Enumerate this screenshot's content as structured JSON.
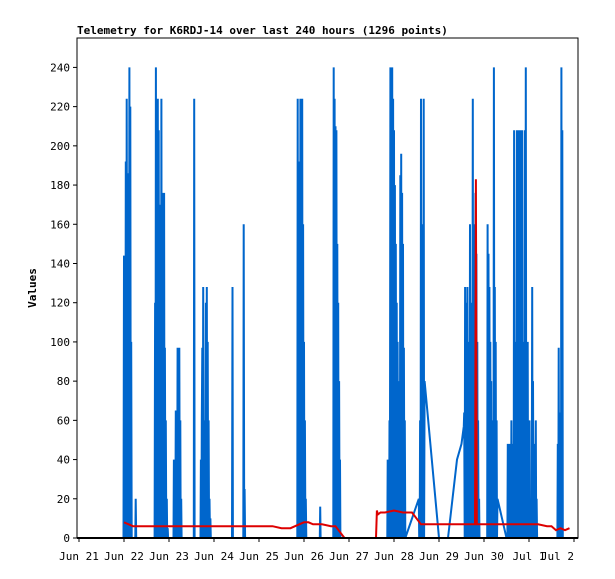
{
  "chart_data": {
    "type": "line",
    "title": "Telemetry for K6RDJ-14 over last 240 hours (1296 points)",
    "xlabel": "",
    "ylabel": "Values",
    "ylim": [
      0,
      255
    ],
    "xlim": [
      0,
      11
    ],
    "y_ticks": [
      0,
      20,
      40,
      60,
      80,
      100,
      120,
      140,
      160,
      180,
      200,
      220,
      240
    ],
    "x_ticks": [
      "Jun 21",
      "Jun 22",
      "Jun 23",
      "Jun 24",
      "Jun 25",
      "Jun 26",
      "Jun 27",
      "Jun 28",
      "Jun 29",
      "Jun 30",
      "Jul 1",
      "Jul 2"
    ],
    "grid": false,
    "legend": "none",
    "series": [
      {
        "color": "#0066cc",
        "x": [
          0.99,
          1.0,
          1.01,
          1.02,
          1.03,
          1.04,
          1.05,
          1.06,
          1.07,
          1.08,
          1.09,
          1.1,
          1.11,
          1.12,
          1.13,
          1.14,
          1.15,
          1.16,
          1.17,
          1.18,
          1.19,
          1.2,
          1.21,
          1.22,
          1.23,
          1.24,
          1.25,
          1.26,
          1.27,
          1.28,
          1.29,
          1.3,
          1.68,
          1.69,
          1.7,
          1.71,
          1.72,
          1.73,
          1.74,
          1.75,
          1.76,
          1.77,
          1.78,
          1.79,
          1.8,
          1.81,
          1.82,
          1.83,
          1.84,
          1.85,
          1.86,
          1.87,
          1.88,
          1.89,
          1.9,
          1.91,
          1.92,
          1.93,
          1.94,
          1.95,
          1.96,
          1.97,
          1.98,
          2.1,
          2.11,
          2.12,
          2.13,
          2.14,
          2.15,
          2.16,
          2.17,
          2.18,
          2.19,
          2.2,
          2.21,
          2.22,
          2.23,
          2.24,
          2.25,
          2.26,
          2.27,
          2.28,
          2.29,
          2.3,
          2.55,
          2.56,
          2.57,
          2.58,
          2.7,
          2.71,
          2.72,
          2.73,
          2.74,
          2.75,
          2.76,
          2.77,
          2.78,
          2.79,
          2.8,
          2.81,
          2.82,
          2.83,
          2.84,
          2.85,
          2.86,
          2.87,
          2.88,
          2.89,
          2.9,
          2.91,
          2.92,
          2.93,
          3.4,
          3.41,
          3.42,
          3.65,
          3.66,
          3.67,
          3.68,
          3.69,
          4.85,
          4.86,
          4.87,
          4.88,
          4.89,
          4.9,
          4.91,
          4.92,
          4.93,
          4.94,
          4.95,
          4.96,
          4.97,
          4.98,
          4.99,
          5.0,
          5.01,
          5.02,
          5.03,
          5.04,
          5.05,
          5.06,
          5.35,
          5.36,
          5.37,
          5.65,
          5.66,
          5.67,
          5.68,
          5.69,
          5.7,
          5.71,
          5.72,
          5.73,
          5.74,
          5.75,
          5.76,
          5.77,
          5.78,
          5.79,
          5.8,
          5.81,
          6.85,
          6.86,
          6.87,
          6.88,
          6.89,
          6.9,
          6.91,
          6.92,
          6.93,
          6.94,
          6.95,
          6.96,
          6.97,
          6.98,
          6.99,
          7.0,
          7.01,
          7.02,
          7.03,
          7.04,
          7.05,
          7.06,
          7.07,
          7.08,
          7.09,
          7.1,
          7.11,
          7.12,
          7.13,
          7.14,
          7.15,
          7.16,
          7.17,
          7.18,
          7.19,
          7.2,
          7.21,
          7.22,
          7.23,
          7.24,
          7.25,
          7.55,
          7.56,
          7.57,
          7.58,
          7.59,
          7.6,
          7.61,
          7.62,
          7.63,
          7.64,
          7.65,
          7.66,
          7.67,
          7.68,
          8.0,
          8.1,
          8.2,
          8.3,
          8.4,
          8.5,
          8.55,
          8.56,
          8.57,
          8.58,
          8.59,
          8.6,
          8.61,
          8.62,
          8.63,
          8.64,
          8.65,
          8.66,
          8.67,
          8.68,
          8.69,
          8.7,
          8.71,
          8.72,
          8.73,
          8.74,
          8.75,
          8.76,
          8.77,
          8.78,
          8.79,
          8.8,
          8.81,
          8.82,
          8.83,
          8.84,
          8.85,
          8.86,
          8.87,
          8.88,
          8.89,
          8.9,
          9.05,
          9.06,
          9.07,
          9.08,
          9.09,
          9.1,
          9.11,
          9.12,
          9.13,
          9.14,
          9.15,
          9.16,
          9.17,
          9.18,
          9.19,
          9.2,
          9.21,
          9.22,
          9.23,
          9.24,
          9.25,
          9.26,
          9.27,
          9.28,
          9.29,
          9.3,
          9.5,
          9.51,
          9.52,
          9.53,
          9.54,
          9.55,
          9.56,
          9.57,
          9.58,
          9.59,
          9.6,
          9.61,
          9.62,
          9.63,
          9.64,
          9.65,
          9.66,
          9.67,
          9.68,
          9.69,
          9.7,
          9.71,
          9.72,
          9.73,
          9.74,
          9.75,
          9.76,
          9.77,
          9.78,
          9.79,
          9.8,
          9.81,
          9.82,
          9.83,
          9.84,
          9.85,
          9.86,
          9.87,
          9.88,
          9.89,
          9.9,
          9.91,
          9.92,
          9.93,
          9.94,
          9.95,
          9.96,
          9.97,
          9.98,
          9.99,
          10.0,
          10.01,
          10.02,
          10.03,
          10.04,
          10.05,
          10.06,
          10.07,
          10.08,
          10.09,
          10.1,
          10.11,
          10.12,
          10.13,
          10.14,
          10.15,
          10.16,
          10.17,
          10.18,
          10.19,
          10.2,
          10.21,
          10.63,
          10.64,
          10.65,
          10.66,
          10.67,
          10.68,
          10.69,
          10.7,
          10.71,
          10.72,
          10.73,
          10.74,
          10.75
        ],
        "y": [
          0,
          144,
          0,
          80,
          0,
          192,
          0,
          224,
          40,
          186,
          0,
          112,
          0,
          240,
          60,
          220,
          0,
          100,
          0,
          0,
          0,
          0,
          0,
          0,
          0,
          0,
          0,
          20,
          0,
          0,
          0,
          0,
          0,
          120,
          0,
          240,
          0,
          200,
          0,
          224,
          60,
          208,
          0,
          170,
          0,
          145,
          0,
          224,
          0,
          176,
          0,
          60,
          0,
          176,
          0,
          97,
          0,
          60,
          0,
          20,
          0,
          5,
          0,
          0,
          40,
          0,
          28,
          0,
          65,
          0,
          30,
          0,
          97,
          0,
          80,
          0,
          97,
          0,
          60,
          0,
          20,
          0,
          0,
          0,
          0,
          224,
          0,
          0,
          0,
          40,
          0,
          60,
          97,
          0,
          128,
          0,
          28,
          0,
          60,
          0,
          120,
          0,
          128,
          0,
          100,
          0,
          60,
          0,
          20,
          0,
          10,
          0,
          0,
          128,
          0,
          0,
          160,
          0,
          25,
          0,
          0,
          224,
          0,
          192,
          0,
          176,
          0,
          224,
          0,
          160,
          0,
          224,
          0,
          160,
          0,
          100,
          0,
          60,
          0,
          20,
          0,
          0,
          0,
          16,
          0,
          0,
          240,
          0,
          224,
          0,
          210,
          0,
          208,
          0,
          150,
          0,
          120,
          0,
          80,
          0,
          40,
          0,
          0,
          40,
          0,
          20,
          0,
          60,
          0,
          240,
          0,
          200,
          0,
          240,
          0,
          224,
          0,
          208,
          0,
          180,
          0,
          150,
          0,
          120,
          0,
          100,
          0,
          80,
          0,
          60,
          0,
          185,
          0,
          196,
          0,
          176,
          0,
          150,
          0,
          97,
          0,
          60,
          0,
          20,
          0,
          0,
          60,
          0,
          224,
          0,
          120,
          0,
          160,
          0,
          224,
          0,
          80,
          0,
          0,
          0,
          20,
          40,
          48,
          57,
          64,
          0,
          128,
          0,
          60,
          120,
          0,
          128,
          0,
          100,
          0,
          60,
          0,
          160,
          0,
          120,
          0,
          80,
          0,
          224,
          0,
          120,
          0,
          160,
          0,
          176,
          0,
          145,
          0,
          100,
          0,
          60,
          0,
          20,
          0,
          0,
          0,
          0,
          160,
          0,
          145,
          0,
          128,
          0,
          100,
          0,
          80,
          0,
          60,
          0,
          20,
          0,
          240,
          0,
          128,
          0,
          100,
          0,
          60,
          0,
          20,
          0,
          0,
          0,
          48,
          0,
          20,
          0,
          48,
          0,
          36,
          0,
          60,
          0,
          48,
          0,
          40,
          0,
          208,
          0,
          100,
          0,
          60,
          0,
          208,
          0,
          112,
          0,
          208,
          0,
          80,
          0,
          208,
          0,
          120,
          0,
          208,
          0,
          100,
          0,
          60,
          0,
          208,
          0,
          240,
          0,
          56,
          0,
          100,
          0,
          40,
          0,
          60,
          0,
          20,
          0,
          6,
          0,
          128,
          0,
          80,
          0,
          48,
          0,
          20,
          0,
          60,
          0,
          20,
          0,
          0,
          0,
          0,
          0,
          48,
          0,
          97,
          0,
          48,
          0,
          64,
          0,
          240,
          0,
          208,
          0
        ]
      },
      {
        "color": "#dd0000",
        "x": [
          1.0,
          1.2,
          1.5,
          2.0,
          2.5,
          3.0,
          3.5,
          3.9,
          4.0,
          4.3,
          4.5,
          4.7,
          4.8,
          5.0,
          5.1,
          5.2,
          5.4,
          5.6,
          5.7,
          5.9,
          6.1,
          6.6,
          6.62,
          6.64,
          6.7,
          6.8,
          7.0,
          7.2,
          7.4,
          7.6,
          7.8,
          8.0,
          8.2,
          8.4,
          8.6,
          8.8,
          8.82,
          8.84,
          8.86,
          9.0,
          9.2,
          9.5,
          9.8,
          10.0,
          10.2,
          10.4,
          10.5,
          10.6,
          10.7,
          10.8,
          10.9
        ],
        "y": [
          8,
          6,
          6,
          6,
          6,
          6,
          6,
          6,
          6,
          6,
          5,
          5,
          6,
          8,
          8,
          7,
          7,
          6,
          6,
          0,
          0,
          0,
          14,
          12,
          13,
          13,
          14,
          13,
          13,
          7,
          7,
          7,
          7,
          7,
          7,
          7,
          183,
          7,
          7,
          7,
          7,
          7,
          7,
          7,
          7,
          6,
          6,
          4,
          5,
          4,
          5
        ]
      }
    ]
  }
}
